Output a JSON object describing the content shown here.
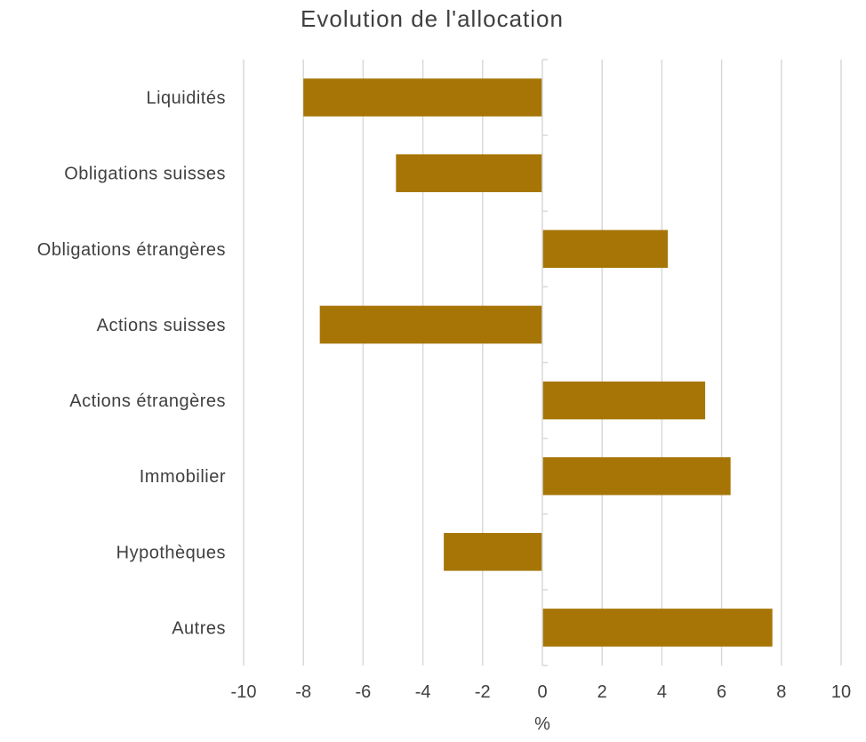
{
  "chart_data": {
    "type": "bar",
    "orientation": "horizontal",
    "title": "Evolution de l'allocation",
    "xlabel": "%",
    "ylabel": "",
    "xlim": [
      -10,
      10
    ],
    "xticks": [
      -10,
      -8,
      -6,
      -4,
      -2,
      0,
      2,
      4,
      6,
      8,
      10
    ],
    "grid": true,
    "bar_color": "#A67505",
    "categories": [
      "Liquidités",
      "Obligations suisses",
      "Obligations étrangères",
      "Actions suisses",
      "Actions étrangères",
      "Immobilier",
      "Hypothèques",
      "Autres"
    ],
    "values": [
      -8.0,
      -4.9,
      4.2,
      -7.45,
      5.45,
      6.3,
      -3.3,
      7.7
    ]
  }
}
